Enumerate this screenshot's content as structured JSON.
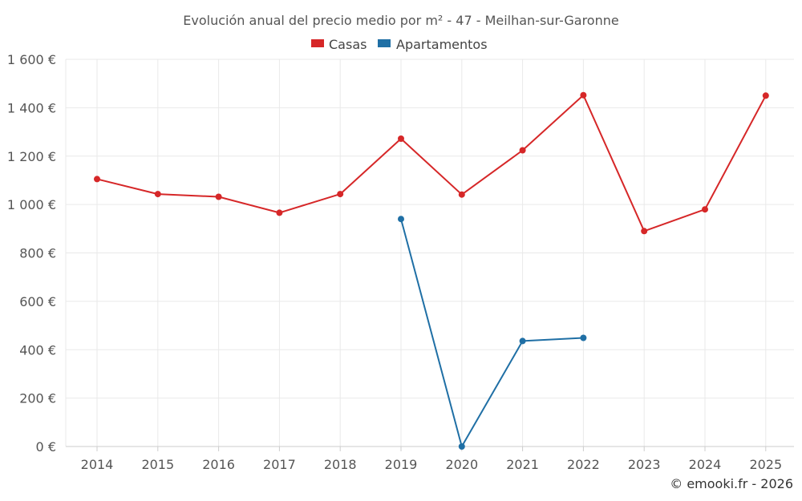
{
  "chart_data": {
    "type": "line",
    "title": "Evolución anual del precio medio por m² - 47 - Meilhan-sur-Garonne",
    "categories": [
      "2014",
      "2015",
      "2016",
      "2017",
      "2018",
      "2019",
      "2020",
      "2021",
      "2022",
      "2023",
      "2024",
      "2025"
    ],
    "y_ticks": [
      0,
      200,
      400,
      600,
      800,
      1000,
      1200,
      1400,
      1600
    ],
    "y_tick_labels": [
      "0 €",
      "200 €",
      "400 €",
      "600 €",
      "800 €",
      "1 000 €",
      "1 200 €",
      "1 400 €",
      "1 600 €"
    ],
    "ylim": [
      0,
      1600
    ],
    "grid": true,
    "legend_position": "top-center",
    "series": [
      {
        "name": "Casas",
        "color": "#d62728",
        "values": [
          1105,
          1043,
          1032,
          966,
          1043,
          1272,
          1041,
          1224,
          1452,
          890,
          980,
          1450
        ]
      },
      {
        "name": "Apartamentos",
        "color": "#1f6fa5",
        "values": [
          null,
          null,
          null,
          null,
          null,
          940,
          0,
          436,
          449,
          null,
          null,
          null
        ]
      }
    ]
  },
  "credit": "© emooki.fr - 2026"
}
